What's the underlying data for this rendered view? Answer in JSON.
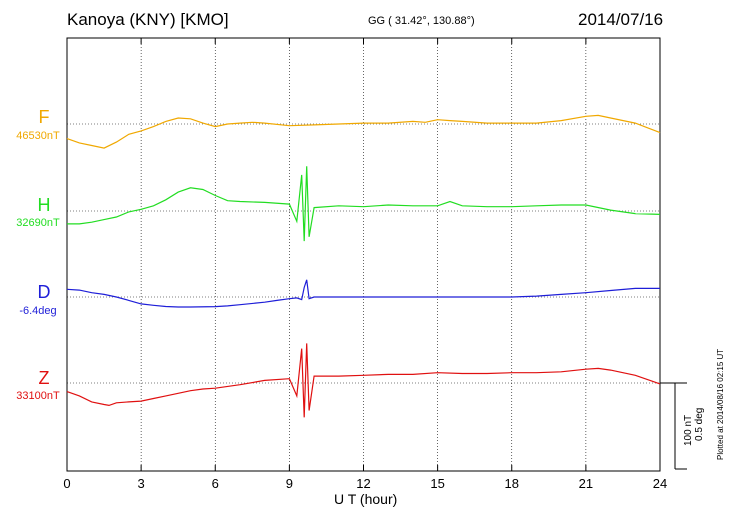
{
  "header": {
    "station": "Kanoya (KNY)  [KMO]",
    "coords": "GG ( 31.42°, 130.88°)",
    "date": "2014/07/16"
  },
  "chart_data": {
    "type": "line",
    "title": "Kanoya (KNY)  [KMO]",
    "xlabel": "U T (hour)",
    "xlim": [
      0,
      24
    ],
    "xticks": [
      "0",
      "3",
      "6",
      "9",
      "12",
      "15",
      "18",
      "21",
      "24"
    ],
    "scale_labels": [
      "100 nT",
      "0.5 deg"
    ],
    "plotted_note": "Plotted at 2014/08/16 02:15 UT",
    "grid": true,
    "series": [
      {
        "name": "F",
        "base_label": "46530nT",
        "color": "#f0a800",
        "unit": "nT",
        "x": [
          0,
          0.5,
          1,
          1.5,
          2,
          2.5,
          3,
          3.5,
          4,
          4.5,
          5,
          5.5,
          6,
          6.5,
          7,
          7.5,
          8,
          9,
          10,
          11,
          12,
          13,
          14,
          14.5,
          15,
          15.5,
          16,
          17,
          18,
          19,
          20,
          21,
          21.5,
          22,
          23,
          24
        ],
        "values": [
          -17,
          -22,
          -25,
          -28,
          -21,
          -12,
          -8,
          -3,
          3,
          7,
          6,
          1,
          -3,
          0,
          1,
          2,
          1,
          -2,
          -1,
          0,
          1,
          1,
          3,
          2,
          5,
          4,
          3,
          1,
          1,
          1,
          4,
          9,
          10,
          7,
          1,
          -10
        ]
      },
      {
        "name": "H",
        "base_label": "32690nT",
        "color": "#22dd22",
        "unit": "nT",
        "x": [
          0,
          0.5,
          1,
          1.5,
          2,
          2.5,
          3,
          3.5,
          4,
          4.5,
          5,
          5.5,
          6,
          6.5,
          7,
          8,
          9,
          9.3,
          9.5,
          9.6,
          9.7,
          9.8,
          10,
          11,
          12,
          13,
          14,
          15,
          15.5,
          16,
          17,
          18,
          19,
          20,
          21,
          22,
          23,
          24
        ],
        "values": [
          -15,
          -15,
          -13,
          -10,
          -7,
          -1,
          2,
          6,
          13,
          22,
          27,
          25,
          18,
          12,
          11,
          10,
          8,
          -12,
          42,
          -35,
          52,
          -30,
          4,
          6,
          5,
          7,
          6,
          6,
          11,
          6,
          5,
          5,
          6,
          7,
          7,
          1,
          -3,
          -4
        ]
      },
      {
        "name": "D",
        "base_label": "-6.4deg",
        "color": "#1e1ed8",
        "unit": "deg",
        "x": [
          0,
          0.5,
          1,
          1.5,
          2,
          2.5,
          3,
          3.5,
          4,
          4.5,
          5,
          6,
          6.5,
          7,
          8,
          8.5,
          9,
          9.3,
          9.5,
          9.6,
          9.7,
          9.8,
          10,
          11,
          12,
          13,
          14,
          15,
          16,
          17,
          18,
          19,
          20,
          21,
          22,
          23,
          24
        ],
        "values": [
          0.045,
          0.04,
          0.025,
          0.015,
          0.0,
          -0.02,
          -0.04,
          -0.048,
          -0.055,
          -0.058,
          -0.058,
          -0.056,
          -0.052,
          -0.045,
          -0.03,
          -0.02,
          -0.01,
          -0.005,
          -0.015,
          0.055,
          0.1,
          -0.01,
          0.0,
          0.0,
          0.0,
          0.0,
          0.0,
          0.0,
          0.0,
          0.0,
          0.0,
          0.005,
          0.015,
          0.025,
          0.038,
          0.05,
          0.05
        ]
      },
      {
        "name": "Z",
        "base_label": "33100nT",
        "color": "#e01010",
        "unit": "nT",
        "x": [
          0,
          0.5,
          1,
          1.5,
          1.7,
          2,
          2.5,
          3,
          3.5,
          4,
          4.5,
          5,
          5.5,
          6,
          7,
          8,
          9,
          9.3,
          9.5,
          9.6,
          9.7,
          9.8,
          10,
          11,
          12,
          13,
          14,
          15,
          16,
          17,
          18,
          19,
          20,
          21,
          21.5,
          22,
          23,
          24
        ],
        "values": [
          -10,
          -15,
          -22,
          -25,
          -26,
          -23,
          -22,
          -21,
          -18,
          -15,
          -12,
          -9,
          -7,
          -6,
          -2,
          3,
          5,
          -15,
          40,
          -40,
          46,
          -32,
          8,
          8,
          9,
          10,
          10,
          12,
          11,
          11,
          12,
          12,
          13,
          16,
          17,
          15,
          9,
          -1
        ]
      }
    ]
  }
}
